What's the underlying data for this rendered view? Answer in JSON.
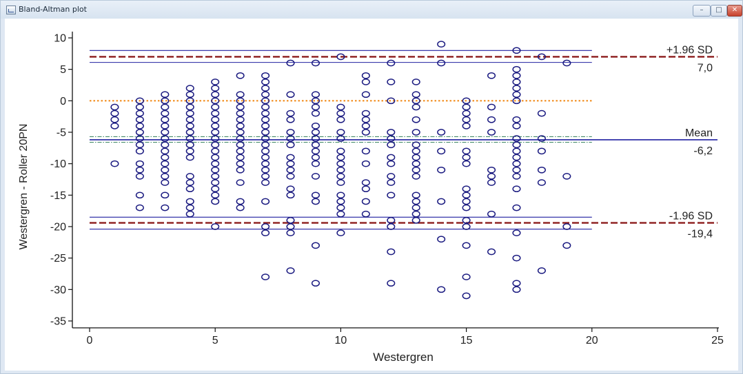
{
  "window": {
    "title": "Bland-Altman plot",
    "minimize_glyph": "–",
    "maximize_glyph": "□",
    "close_glyph": "✕"
  },
  "chart_data": {
    "type": "scatter",
    "xlabel": "Westergren",
    "ylabel": "Westergren - Roller 20PN",
    "xlim": [
      0,
      25
    ],
    "ylim": [
      -36,
      11
    ],
    "xticks": [
      0,
      5,
      10,
      15,
      20,
      25
    ],
    "yticks": [
      10,
      5,
      0,
      -5,
      -10,
      -15,
      -20,
      -25,
      -30,
      -35
    ],
    "grid": false,
    "marker": "open-circle",
    "marker_color": "#1a1a80",
    "reference_lines": {
      "zero": {
        "value": 0,
        "color": "#f28c1c",
        "style": "dotted"
      },
      "mean": {
        "value": -6.2,
        "label": "Mean",
        "value_label": "-6,2",
        "color": "#1f1fa0",
        "ci": [
          -6.6,
          -5.7
        ],
        "ci_color": "#2e7d57"
      },
      "upper_loa": {
        "value": 7.0,
        "label": "+1.96 SD",
        "value_label": "7,0",
        "color": "#8b1a1a",
        "ci": [
          6.1,
          8.0
        ],
        "ci_color": "#1f1fa0"
      },
      "lower_loa": {
        "value": -19.4,
        "label": "-1.96 SD",
        "value_label": "-19,4",
        "color": "#8b1a1a",
        "ci": [
          -20.4,
          -18.5
        ],
        "ci_color": "#1f1fa0"
      }
    },
    "points": [
      [
        1,
        -1
      ],
      [
        1,
        -2
      ],
      [
        1,
        -3
      ],
      [
        1,
        -4
      ],
      [
        1,
        -10
      ],
      [
        2,
        0
      ],
      [
        2,
        -1
      ],
      [
        2,
        -2
      ],
      [
        2,
        -3
      ],
      [
        2,
        -4
      ],
      [
        2,
        -5
      ],
      [
        2,
        -6
      ],
      [
        2,
        -7
      ],
      [
        2,
        -8
      ],
      [
        2,
        -10
      ],
      [
        2,
        -11
      ],
      [
        2,
        -12
      ],
      [
        2,
        -15
      ],
      [
        2,
        -17
      ],
      [
        3,
        1
      ],
      [
        3,
        0
      ],
      [
        3,
        -1
      ],
      [
        3,
        -2
      ],
      [
        3,
        -3
      ],
      [
        3,
        -4
      ],
      [
        3,
        -5
      ],
      [
        3,
        -6
      ],
      [
        3,
        -7
      ],
      [
        3,
        -8
      ],
      [
        3,
        -9
      ],
      [
        3,
        -10
      ],
      [
        3,
        -11
      ],
      [
        3,
        -12
      ],
      [
        3,
        -13
      ],
      [
        3,
        -15
      ],
      [
        3,
        -17
      ],
      [
        4,
        2
      ],
      [
        4,
        1
      ],
      [
        4,
        0
      ],
      [
        4,
        -1
      ],
      [
        4,
        -2
      ],
      [
        4,
        -3
      ],
      [
        4,
        -4
      ],
      [
        4,
        -5
      ],
      [
        4,
        -6
      ],
      [
        4,
        -7
      ],
      [
        4,
        -8
      ],
      [
        4,
        -9
      ],
      [
        4,
        -12
      ],
      [
        4,
        -13
      ],
      [
        4,
        -14
      ],
      [
        4,
        -16
      ],
      [
        4,
        -17
      ],
      [
        4,
        -18
      ],
      [
        5,
        3
      ],
      [
        5,
        2
      ],
      [
        5,
        1
      ],
      [
        5,
        0
      ],
      [
        5,
        -1
      ],
      [
        5,
        -2
      ],
      [
        5,
        -3
      ],
      [
        5,
        -4
      ],
      [
        5,
        -5
      ],
      [
        5,
        -6
      ],
      [
        5,
        -7
      ],
      [
        5,
        -8
      ],
      [
        5,
        -9
      ],
      [
        5,
        -10
      ],
      [
        5,
        -11
      ],
      [
        5,
        -12
      ],
      [
        5,
        -13
      ],
      [
        5,
        -14
      ],
      [
        5,
        -15
      ],
      [
        5,
        -16
      ],
      [
        5,
        -20
      ],
      [
        6,
        4
      ],
      [
        6,
        1
      ],
      [
        6,
        0
      ],
      [
        6,
        -1
      ],
      [
        6,
        -2
      ],
      [
        6,
        -3
      ],
      [
        6,
        -4
      ],
      [
        6,
        -5
      ],
      [
        6,
        -6
      ],
      [
        6,
        -7
      ],
      [
        6,
        -8
      ],
      [
        6,
        -9
      ],
      [
        6,
        -10
      ],
      [
        6,
        -11
      ],
      [
        6,
        -13
      ],
      [
        6,
        -16
      ],
      [
        6,
        -17
      ],
      [
        7,
        4
      ],
      [
        7,
        3
      ],
      [
        7,
        2
      ],
      [
        7,
        1
      ],
      [
        7,
        0
      ],
      [
        7,
        -1
      ],
      [
        7,
        -2
      ],
      [
        7,
        -3
      ],
      [
        7,
        -4
      ],
      [
        7,
        -5
      ],
      [
        7,
        -6
      ],
      [
        7,
        -7
      ],
      [
        7,
        -8
      ],
      [
        7,
        -9
      ],
      [
        7,
        -10
      ],
      [
        7,
        -11
      ],
      [
        7,
        -12
      ],
      [
        7,
        -13
      ],
      [
        7,
        -16
      ],
      [
        7,
        -20
      ],
      [
        7,
        -21
      ],
      [
        7,
        -28
      ],
      [
        8,
        6
      ],
      [
        8,
        1
      ],
      [
        8,
        -2
      ],
      [
        8,
        -3
      ],
      [
        8,
        -5
      ],
      [
        8,
        -6
      ],
      [
        8,
        -7
      ],
      [
        8,
        -9
      ],
      [
        8,
        -10
      ],
      [
        8,
        -11
      ],
      [
        8,
        -12
      ],
      [
        8,
        -14
      ],
      [
        8,
        -15
      ],
      [
        8,
        -19
      ],
      [
        8,
        -20
      ],
      [
        8,
        -21
      ],
      [
        8,
        -27
      ],
      [
        9,
        6
      ],
      [
        9,
        1
      ],
      [
        9,
        0
      ],
      [
        9,
        -1
      ],
      [
        9,
        -2
      ],
      [
        9,
        -4
      ],
      [
        9,
        -5
      ],
      [
        9,
        -6
      ],
      [
        9,
        -7
      ],
      [
        9,
        -8
      ],
      [
        9,
        -9
      ],
      [
        9,
        -10
      ],
      [
        9,
        -12
      ],
      [
        9,
        -15
      ],
      [
        9,
        -16
      ],
      [
        9,
        -23
      ],
      [
        9,
        -29
      ],
      [
        10,
        7
      ],
      [
        10,
        -1
      ],
      [
        10,
        -2
      ],
      [
        10,
        -3
      ],
      [
        10,
        -5
      ],
      [
        10,
        -6
      ],
      [
        10,
        -8
      ],
      [
        10,
        -9
      ],
      [
        10,
        -10
      ],
      [
        10,
        -11
      ],
      [
        10,
        -12
      ],
      [
        10,
        -13
      ],
      [
        10,
        -15
      ],
      [
        10,
        -16
      ],
      [
        10,
        -17
      ],
      [
        10,
        -18
      ],
      [
        10,
        -21
      ],
      [
        11,
        4
      ],
      [
        11,
        3
      ],
      [
        11,
        1
      ],
      [
        11,
        -2
      ],
      [
        11,
        -3
      ],
      [
        11,
        -4
      ],
      [
        11,
        -5
      ],
      [
        11,
        -8
      ],
      [
        11,
        -10
      ],
      [
        11,
        -13
      ],
      [
        11,
        -14
      ],
      [
        11,
        -16
      ],
      [
        11,
        -18
      ],
      [
        12,
        6
      ],
      [
        12,
        3
      ],
      [
        12,
        0
      ],
      [
        12,
        -5
      ],
      [
        12,
        -6
      ],
      [
        12,
        -7
      ],
      [
        12,
        -9
      ],
      [
        12,
        -10
      ],
      [
        12,
        -12
      ],
      [
        12,
        -13
      ],
      [
        12,
        -15
      ],
      [
        12,
        -19
      ],
      [
        12,
        -20
      ],
      [
        12,
        -24
      ],
      [
        12,
        -29
      ],
      [
        13,
        3
      ],
      [
        13,
        1
      ],
      [
        13,
        0
      ],
      [
        13,
        -1
      ],
      [
        13,
        -3
      ],
      [
        13,
        -5
      ],
      [
        13,
        -7
      ],
      [
        13,
        -8
      ],
      [
        13,
        -9
      ],
      [
        13,
        -10
      ],
      [
        13,
        -11
      ],
      [
        13,
        -12
      ],
      [
        13,
        -15
      ],
      [
        13,
        -16
      ],
      [
        13,
        -17
      ],
      [
        13,
        -18
      ],
      [
        13,
        -19
      ],
      [
        14,
        9
      ],
      [
        14,
        6
      ],
      [
        14,
        -5
      ],
      [
        14,
        -8
      ],
      [
        14,
        -11
      ],
      [
        14,
        -16
      ],
      [
        14,
        -22
      ],
      [
        14,
        -30
      ],
      [
        15,
        0
      ],
      [
        15,
        -1
      ],
      [
        15,
        -2
      ],
      [
        15,
        -3
      ],
      [
        15,
        -4
      ],
      [
        15,
        -8
      ],
      [
        15,
        -9
      ],
      [
        15,
        -10
      ],
      [
        15,
        -14
      ],
      [
        15,
        -15
      ],
      [
        15,
        -16
      ],
      [
        15,
        -17
      ],
      [
        15,
        -19
      ],
      [
        15,
        -20
      ],
      [
        15,
        -23
      ],
      [
        15,
        -28
      ],
      [
        15,
        -31
      ],
      [
        16,
        4
      ],
      [
        16,
        -1
      ],
      [
        16,
        -3
      ],
      [
        16,
        -5
      ],
      [
        16,
        -11
      ],
      [
        16,
        -12
      ],
      [
        16,
        -13
      ],
      [
        16,
        -18
      ],
      [
        16,
        -24
      ],
      [
        17,
        8
      ],
      [
        17,
        5
      ],
      [
        17,
        4
      ],
      [
        17,
        3
      ],
      [
        17,
        2
      ],
      [
        17,
        1
      ],
      [
        17,
        0
      ],
      [
        17,
        -3
      ],
      [
        17,
        -4
      ],
      [
        17,
        -6
      ],
      [
        17,
        -7
      ],
      [
        17,
        -8
      ],
      [
        17,
        -9
      ],
      [
        17,
        -10
      ],
      [
        17,
        -11
      ],
      [
        17,
        -12
      ],
      [
        17,
        -14
      ],
      [
        17,
        -17
      ],
      [
        17,
        -21
      ],
      [
        17,
        -25
      ],
      [
        17,
        -29
      ],
      [
        17,
        -30
      ],
      [
        18,
        7
      ],
      [
        18,
        -2
      ],
      [
        18,
        -6
      ],
      [
        18,
        -8
      ],
      [
        18,
        -11
      ],
      [
        18,
        -13
      ],
      [
        18,
        -27
      ],
      [
        19,
        6
      ],
      [
        19,
        -12
      ],
      [
        19,
        -20
      ],
      [
        19,
        -23
      ]
    ]
  }
}
